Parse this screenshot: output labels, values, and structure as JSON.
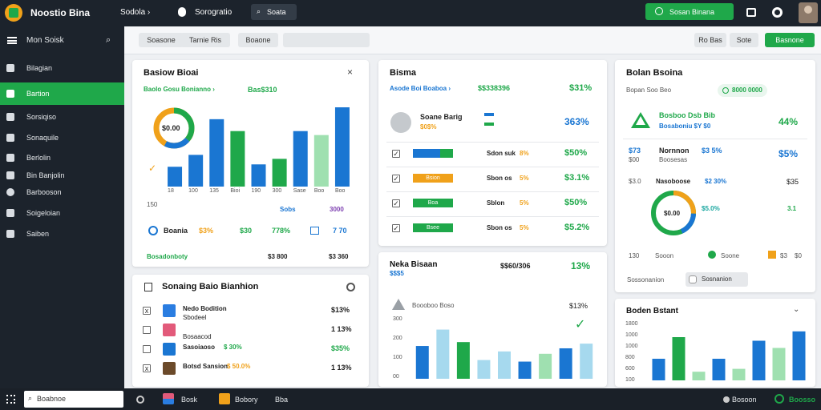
{
  "topbar": {
    "app_title": "Noostio Bina",
    "nav1": "Sodola ›",
    "nav2": "Sorogratio",
    "search": "Soata",
    "cta": "Sosan Binana"
  },
  "sidebar": {
    "header": "Mon Soisk",
    "items": [
      "Bilagian",
      "Bartion",
      "Sorsiqiso",
      "Sonaquile",
      "Berlolin",
      "Bin Banjolin",
      "Barbooson",
      "Soigeloian",
      "Saiben"
    ]
  },
  "filterbar": {
    "chip1": "Soasone",
    "chip2": "Tarnie Ris",
    "chip3": "Boaone",
    "btn1": "Ro Bas",
    "btn2": "Sote",
    "primary": "Basnone"
  },
  "card1": {
    "title": "Basiow Bioai",
    "subtitle": "Baolo Gosu Bonianno ›",
    "subvalue": "Bas$310",
    "donut_label": "$0.00",
    "ticks": [
      "18",
      "100",
      "135",
      "Bioi",
      "190",
      "300",
      "Sase",
      "Boo",
      "Boo"
    ],
    "legend_a": "150",
    "legend_b": "Sobs",
    "legend_c": "3000",
    "stat_label": "Boania",
    "stat1": "$3%",
    "stat2": "$30",
    "stat3": "778%",
    "stat4": "7 70",
    "footer_label": "Bosadonboty",
    "footer_v1": "$3 800",
    "footer_v2": "$3 360"
  },
  "card2": {
    "title": "Bisma",
    "subtitle": "Asode Boi Boaboa ›",
    "subvalue": "$$338396",
    "subpct": "$31%",
    "row0_label": "Soane Barig",
    "row0_sub": "$0$%",
    "row0_pct": "363%",
    "rows": [
      {
        "label": "Sdon suk",
        "pct": "8%",
        "value": "$50%",
        "bar": "",
        "color": "#1a76d2"
      },
      {
        "label": "Sbon os",
        "pct": "5%",
        "value": "$3.1%",
        "bar": "Bsion",
        "color": "#f0a11a"
      },
      {
        "label": "Sblon",
        "pct": "5%",
        "value": "$50%",
        "bar": "Boa",
        "color": "#1fa84a"
      },
      {
        "label": "Sbon os",
        "pct": "5%",
        "value": "$5.2%",
        "bar": "Bsee",
        "color": "#1fa84a"
      }
    ]
  },
  "card3": {
    "title": "Bolan Bsoina",
    "subtitle": "Bopan Soo Beo",
    "chip": "8000 0000",
    "feature_title": "Bosboo Dsb Bib",
    "feature_sub": "Bosaboniu $Y $0",
    "feature_pct": "44%",
    "stat_a": "$73",
    "stat_a2": "$00",
    "name": "Nornnon",
    "name_sub": "Boosesas",
    "name_v": "$3 5%",
    "name_pct": "$5%",
    "mini_a": "$3.0",
    "row_label": "Nasoboose",
    "row_v": "$2 30%",
    "row_pct": "$35",
    "donut_label": "$0.00",
    "donut_pct": "$5.0%",
    "donut_right": "3.1",
    "leg_a": "130",
    "leg_b": "Sooon",
    "leg_c": "Soone",
    "leg_d": "$3",
    "leg_e": "$0",
    "footer_label": "Sossonanion",
    "footer_btn": "Sosnanion"
  },
  "card4": {
    "title": "Sonaing Baio Bianhion",
    "items": [
      {
        "label": "Nedo Bodition",
        "sub": "Sbodeel",
        "pct": "$13%",
        "mark": "x"
      },
      {
        "label": "",
        "sub": "Bosaacod",
        "pct": "1 13%",
        "mark": ""
      },
      {
        "label": "Sasoiaoso",
        "sub": "$ 30%",
        "pct": "$35%",
        "mark": ""
      },
      {
        "label": "Botsd Sansion",
        "sub": "$ 50.0%",
        "pct": "1 13%",
        "mark": "x"
      }
    ]
  },
  "card5": {
    "title": "Neka Bisaan",
    "subtitle": "$$$5",
    "value": "$$60/306",
    "pct": "13%",
    "legend": "Boooboo Boso",
    "legend_pct": "$13%",
    "yticks": [
      "300",
      "200",
      "100",
      "00"
    ]
  },
  "card6": {
    "title": "Boden Bstant",
    "yticks": [
      "1800",
      "1000",
      "1000",
      "800",
      "600",
      "100"
    ]
  },
  "taskbar": {
    "search": "Boabnoe",
    "item1": "Bosk",
    "item2": "Bobory",
    "item3": "Bba",
    "right1": "Bosoon",
    "right2": "Boosso"
  },
  "chart_data": [
    {
      "type": "bar",
      "categories": [
        "18",
        "100",
        "135",
        "Bioi",
        "190",
        "300",
        "Sase",
        "Boo",
        "Boo"
      ],
      "series": [
        {
          "values": [
            25,
            40,
            85,
            70,
            28,
            35,
            70,
            65,
            100
          ]
        }
      ],
      "ylim": [
        0,
        100
      ]
    },
    {
      "type": "bar",
      "series": [
        {
          "values": [
            42,
            63,
            47,
            24,
            35,
            22,
            32,
            39,
            45
          ]
        }
      ],
      "ylim": [
        0,
        80
      ]
    },
    {
      "type": "bar",
      "series": [
        {
          "values": [
            30,
            60,
            12,
            30,
            16,
            55,
            45,
            68
          ]
        }
      ],
      "ylim": [
        0,
        80
      ]
    }
  ],
  "colors": {
    "green": "#1fa84a",
    "blue": "#1a76d2",
    "orange": "#f0a11a",
    "lightgreen": "#9fe0b0",
    "lightblue": "#a6d9ee",
    "dark": "#1c232c"
  }
}
